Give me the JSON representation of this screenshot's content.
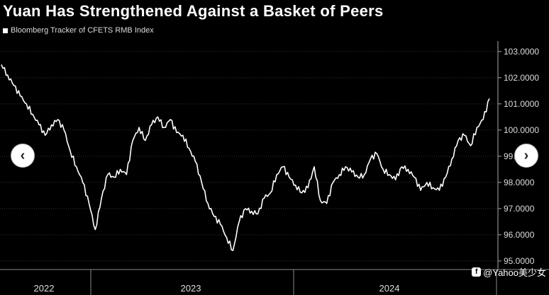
{
  "nav": {
    "prev_glyph": "‹",
    "next_glyph": "›",
    "prev_icon": "chevron-left-icon",
    "next_icon": "chevron-right-icon"
  },
  "watermark": {
    "text": "@Yahoo美少女",
    "icon": "facebook-icon"
  },
  "chart_data": {
    "type": "line",
    "title": "Yuan Has Strengthened Against a Basket of Peers",
    "legend": [
      {
        "name": "Bloomberg Tracker of CFETS RMB Index",
        "color": "#ffffff"
      }
    ],
    "ylim": [
      94.7,
      103.4
    ],
    "y_ticks": [
      95,
      96,
      97,
      98,
      99,
      100,
      101,
      102,
      103
    ],
    "y_tick_labels": [
      "95.0000",
      "96.0000",
      "97.0000",
      "98.0000",
      "99.0000",
      "100.0000",
      "101.0000",
      "102.0000",
      "103.0000"
    ],
    "y_axis_position": "right",
    "grid": true,
    "x_range": [
      "2021-10-01",
      "2024-08-30"
    ],
    "x_tick_dates": [
      "2022-01-01",
      "2023-01-01",
      "2024-01-01",
      "2024-08-30"
    ],
    "x_labels": [
      {
        "text": "2022",
        "at": "2022-01-01"
      },
      {
        "text": "2023",
        "at": "2023-01-01"
      },
      {
        "text": "2024",
        "at": "2024-01-01"
      }
    ],
    "series": [
      {
        "name": "Bloomberg Tracker of CFETS RMB Index",
        "color": "#ffffff",
        "points": [
          [
            "2021-10-01",
            102.5
          ],
          [
            "2021-10-15",
            102.1
          ],
          [
            "2021-10-29",
            101.7
          ],
          [
            "2021-11-12",
            101.3
          ],
          [
            "2021-11-26",
            101.0
          ],
          [
            "2021-12-10",
            100.6
          ],
          [
            "2021-12-24",
            100.2
          ],
          [
            "2022-01-07",
            99.8
          ],
          [
            "2022-01-21",
            100.2
          ],
          [
            "2022-02-04",
            100.4
          ],
          [
            "2022-02-18",
            100.0
          ],
          [
            "2022-03-04",
            99.2
          ],
          [
            "2022-03-18",
            98.6
          ],
          [
            "2022-04-01",
            98.0
          ],
          [
            "2022-04-15",
            97.2
          ],
          [
            "2022-04-29",
            96.2
          ],
          [
            "2022-05-13",
            97.4
          ],
          [
            "2022-05-27",
            98.3
          ],
          [
            "2022-06-10",
            98.2
          ],
          [
            "2022-06-24",
            98.5
          ],
          [
            "2022-07-08",
            98.3
          ],
          [
            "2022-07-22",
            99.6
          ],
          [
            "2022-08-05",
            100.1
          ],
          [
            "2022-08-19",
            99.6
          ],
          [
            "2022-09-02",
            100.2
          ],
          [
            "2022-09-16",
            100.5
          ],
          [
            "2022-09-30",
            100.1
          ],
          [
            "2022-10-14",
            100.4
          ],
          [
            "2022-10-28",
            99.9
          ],
          [
            "2022-11-11",
            99.8
          ],
          [
            "2022-11-25",
            99.3
          ],
          [
            "2022-12-09",
            98.8
          ],
          [
            "2022-12-23",
            98.0
          ],
          [
            "2023-01-06",
            97.2
          ],
          [
            "2023-01-20",
            96.7
          ],
          [
            "2023-02-03",
            96.4
          ],
          [
            "2023-02-17",
            95.9
          ],
          [
            "2023-03-03",
            95.4
          ],
          [
            "2023-03-17",
            96.5
          ],
          [
            "2023-03-31",
            97.0
          ],
          [
            "2023-04-14",
            96.9
          ],
          [
            "2023-04-28",
            96.8
          ],
          [
            "2023-05-12",
            97.4
          ],
          [
            "2023-05-26",
            97.6
          ],
          [
            "2023-06-09",
            98.3
          ],
          [
            "2023-06-23",
            98.6
          ],
          [
            "2023-07-07",
            98.2
          ],
          [
            "2023-07-21",
            97.9
          ],
          [
            "2023-08-04",
            97.6
          ],
          [
            "2023-08-18",
            97.8
          ],
          [
            "2023-09-01",
            98.6
          ],
          [
            "2023-09-15",
            97.3
          ],
          [
            "2023-09-29",
            97.2
          ],
          [
            "2023-10-13",
            98.0
          ],
          [
            "2023-10-27",
            98.3
          ],
          [
            "2023-11-10",
            98.6
          ],
          [
            "2023-11-24",
            98.4
          ],
          [
            "2023-12-08",
            98.2
          ],
          [
            "2023-12-22",
            98.3
          ],
          [
            "2024-01-05",
            98.9
          ],
          [
            "2024-01-19",
            99.1
          ],
          [
            "2024-02-02",
            98.5
          ],
          [
            "2024-02-16",
            98.3
          ],
          [
            "2024-03-01",
            98.1
          ],
          [
            "2024-03-15",
            98.6
          ],
          [
            "2024-03-29",
            98.5
          ],
          [
            "2024-04-12",
            98.2
          ],
          [
            "2024-04-26",
            97.7
          ],
          [
            "2024-05-10",
            98.0
          ],
          [
            "2024-05-24",
            97.8
          ],
          [
            "2024-06-07",
            97.7
          ],
          [
            "2024-06-21",
            98.2
          ],
          [
            "2024-07-05",
            98.9
          ],
          [
            "2024-07-19",
            99.6
          ],
          [
            "2024-08-02",
            99.8
          ],
          [
            "2024-08-16",
            99.4
          ],
          [
            "2024-08-30",
            100.1
          ],
          [
            "2024-09-13",
            100.4
          ],
          [
            "2024-09-27",
            101.2
          ]
        ]
      }
    ]
  }
}
